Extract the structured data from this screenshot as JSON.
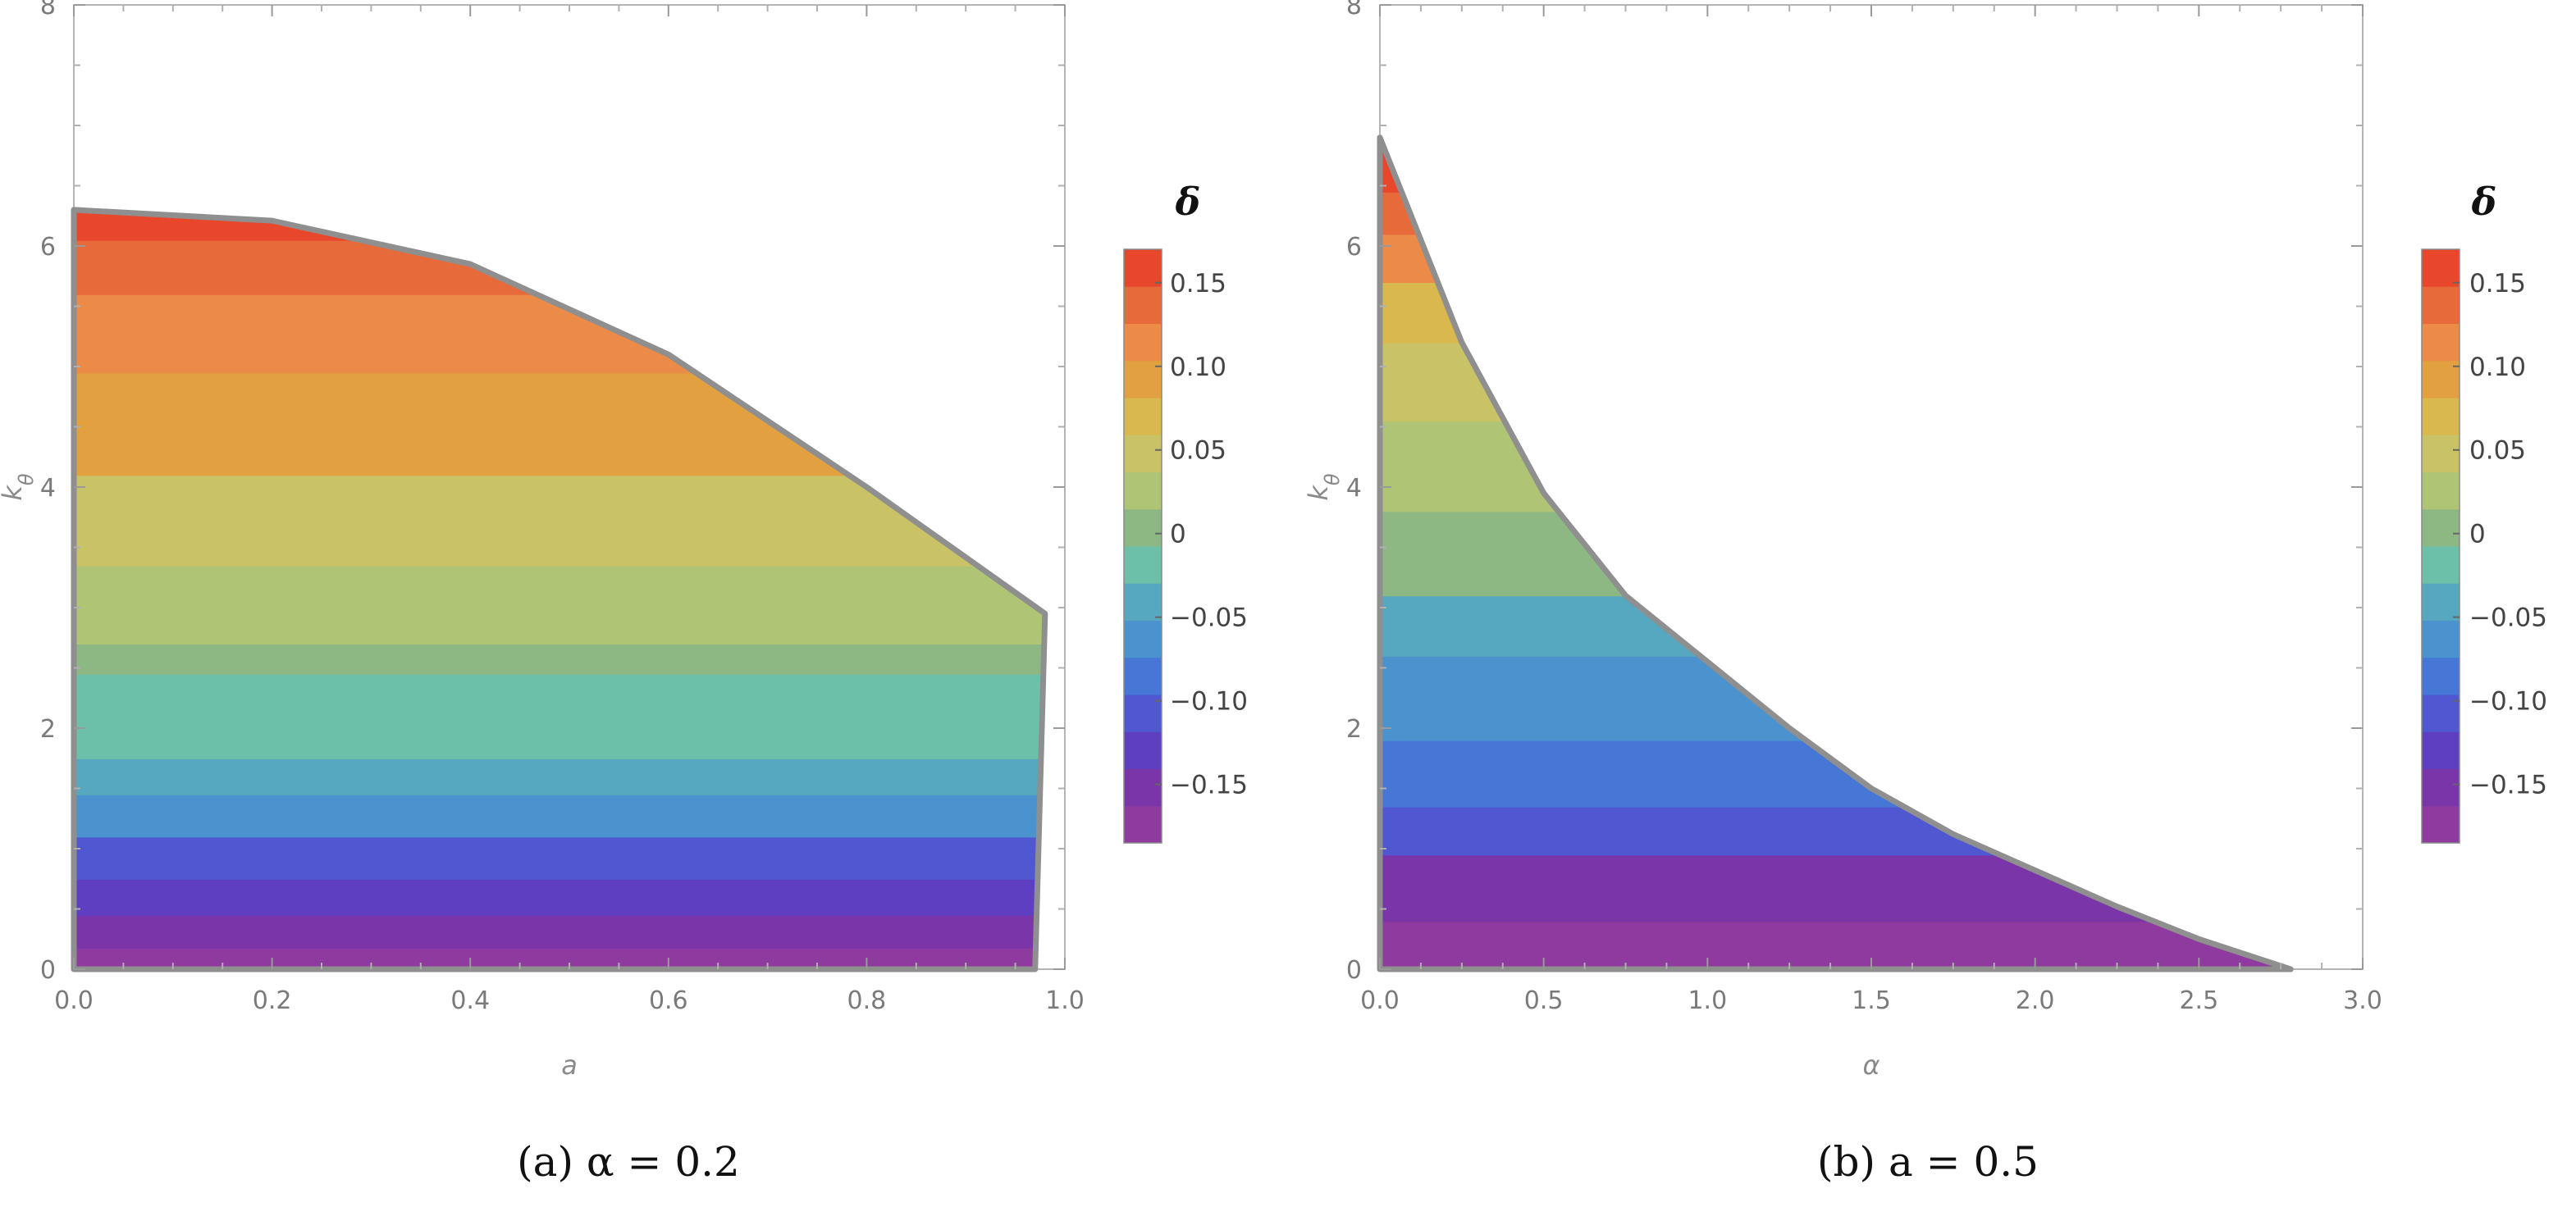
{
  "chart_data": [
    {
      "type": "heatmap",
      "caption": "(a) α = 0.2",
      "xlabel": "a",
      "ylabel": "k_θ",
      "xlim": [
        0,
        1.0
      ],
      "ylim": [
        0,
        8
      ],
      "xticks": [
        "0.0",
        "0.2",
        "0.4",
        "0.6",
        "0.8",
        "1.0"
      ],
      "yticks": [
        "0",
        "2",
        "4",
        "6",
        "8"
      ],
      "region_boundary": [
        [
          0,
          6.3
        ],
        [
          0.2,
          6.21
        ],
        [
          0.4,
          5.85
        ],
        [
          0.6,
          5.1
        ],
        [
          0.8,
          4.0
        ],
        [
          0.98,
          2.95
        ],
        [
          0.97,
          0
        ]
      ],
      "contour_bands_k": [
        0,
        0.18,
        0.45,
        0.75,
        1.1,
        1.45,
        1.75,
        2.45,
        2.7,
        3.35,
        4.1,
        4.95,
        5.6,
        6.05
      ],
      "colorbar": {
        "title": "δ",
        "ticks": [
          "0.15",
          "0.10",
          "0.05",
          "0",
          "−0.05",
          "−0.10",
          "−0.15"
        ],
        "tick_values": [
          0.15,
          0.1,
          0.05,
          0,
          -0.05,
          -0.1,
          -0.15
        ],
        "range": [
          -0.185,
          0.17
        ]
      }
    },
    {
      "type": "heatmap",
      "caption": "(b) a = 0.5",
      "xlabel": "α",
      "ylabel": "k_θ",
      "xlim": [
        0,
        3.0
      ],
      "ylim": [
        0,
        8
      ],
      "xticks": [
        "0.0",
        "0.5",
        "1.0",
        "1.5",
        "2.0",
        "2.5",
        "3.0"
      ],
      "yticks": [
        "0",
        "2",
        "4",
        "6",
        "8"
      ],
      "region_boundary": [
        [
          0,
          6.9
        ],
        [
          0.25,
          5.2
        ],
        [
          0.5,
          3.95
        ],
        [
          0.75,
          3.1
        ],
        [
          1.0,
          2.55
        ],
        [
          1.25,
          2.0
        ],
        [
          1.5,
          1.5
        ],
        [
          1.75,
          1.12
        ],
        [
          2.0,
          0.82
        ],
        [
          2.25,
          0.52
        ],
        [
          2.5,
          0.25
        ],
        [
          2.78,
          0
        ]
      ],
      "contour_bands_k": [
        0,
        0.4,
        0.95,
        1.35,
        1.9,
        2.6,
        3.1,
        3.8,
        4.55,
        5.2,
        5.7,
        6.1,
        6.45
      ],
      "colorbar": {
        "title": "δ",
        "ticks": [
          "0.15",
          "0.10",
          "0.05",
          "0",
          "−0.05",
          "−0.10",
          "−0.15"
        ],
        "tick_values": [
          0.15,
          0.1,
          0.05,
          0,
          -0.05,
          -0.1,
          -0.15
        ],
        "range": [
          -0.185,
          0.17
        ]
      }
    }
  ],
  "palette": [
    "#8e3a9e",
    "#7a36a8",
    "#5e3fc2",
    "#4f58d0",
    "#4677d6",
    "#4a93cf",
    "#55a8bf",
    "#6cc0aa",
    "#8db884",
    "#b0c476",
    "#c9c266",
    "#d9b84d",
    "#e2a040",
    "#ec8a48",
    "#e66a3a",
    "#e8472c"
  ]
}
